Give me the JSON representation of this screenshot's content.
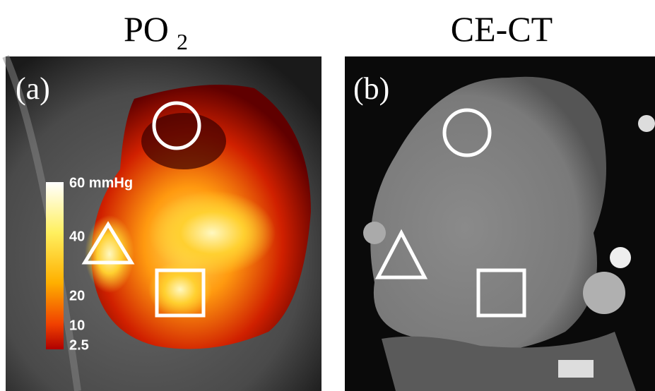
{
  "panels": [
    {
      "title": "PO",
      "title_sub": "2",
      "label": "(a)",
      "colorbar": {
        "labels": [
          "60 mmHg",
          "40",
          "20",
          "10",
          "2.5"
        ]
      }
    },
    {
      "title": "CE-CT",
      "label": "(b)"
    }
  ]
}
